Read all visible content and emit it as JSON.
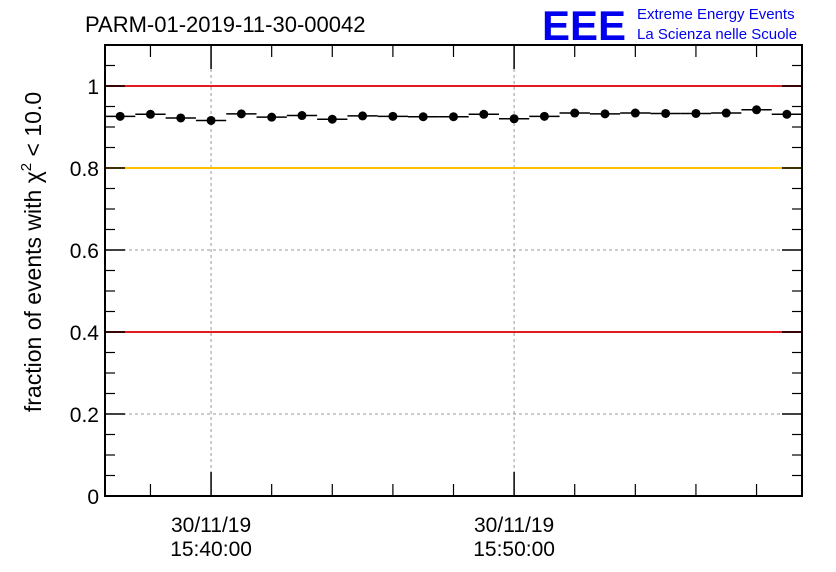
{
  "chart_data": {
    "type": "scatter",
    "title": "PARM-01-2019-11-30-00042",
    "ylabel": "fraction of events with χ² < 10.0",
    "ylabel_parts": {
      "before": "fraction of events with ",
      "symbol": "χ",
      "sup": "2",
      "after": " < 10.0"
    },
    "xlabel": "",
    "ylim": [
      0,
      1.1
    ],
    "yticks": [
      {
        "value": 0,
        "label": "0"
      },
      {
        "value": 0.2,
        "label": "0.2"
      },
      {
        "value": 0.4,
        "label": "0.4"
      },
      {
        "value": 0.6,
        "label": "0.6"
      },
      {
        "value": 0.8,
        "label": "0.8"
      },
      {
        "value": 1.0,
        "label": "1"
      }
    ],
    "x_unit": "minutes since 15:36:30",
    "xlim": [
      0,
      23
    ],
    "x_major_ticks": [
      {
        "value": 3.5,
        "date": "30/11/19",
        "time": "15:40:00"
      },
      {
        "value": 13.5,
        "date": "30/11/19",
        "time": "15:50:00"
      }
    ],
    "x_minor_ticks": [
      1.5,
      5.5,
      7.5,
      9.5,
      11.5,
      15.5,
      17.5,
      19.5,
      21.5
    ],
    "x_grid": [
      3.5,
      13.5
    ],
    "y_grid": [
      0.2,
      0.6
    ],
    "reference_lines": [
      {
        "value": 1.0,
        "color": "#e41a1c"
      },
      {
        "value": 0.8,
        "color": "#ffc000"
      },
      {
        "value": 0.4,
        "color": "#e41a1c"
      }
    ],
    "series": [
      {
        "name": "fraction",
        "x": [
          0.5,
          1.5,
          2.5,
          3.5,
          4.5,
          5.5,
          6.5,
          7.5,
          8.5,
          9.5,
          10.5,
          11.5,
          12.5,
          13.5,
          14.5,
          15.5,
          16.5,
          17.5,
          18.5,
          19.5,
          20.5,
          21.5,
          22.5
        ],
        "values": [
          0.926,
          0.931,
          0.922,
          0.916,
          0.932,
          0.924,
          0.928,
          0.919,
          0.927,
          0.926,
          0.925,
          0.925,
          0.931,
          0.92,
          0.926,
          0.934,
          0.932,
          0.934,
          0.933,
          0.933,
          0.934,
          0.942,
          0.931
        ],
        "x_error": 0.5,
        "color": "#000000"
      }
    ]
  },
  "logo": {
    "text": "EEE",
    "line1": "Extreme Energy Events",
    "line2": "La Scienza nelle Scuole",
    "color": "#0000ee"
  }
}
